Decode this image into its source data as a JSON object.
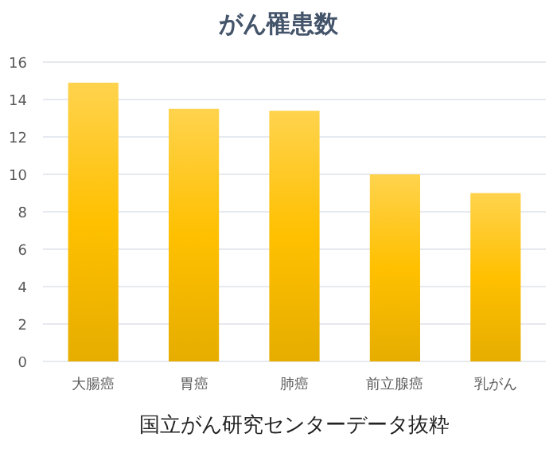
{
  "chart_data": {
    "type": "bar",
    "title": "がん罹患数",
    "categories": [
      "大腸癌",
      "胃癌",
      "肺癌",
      "前立腺癌",
      "乳がん"
    ],
    "values": [
      14.9,
      13.5,
      13.4,
      10.0,
      9.0
    ],
    "color": "#ffc000",
    "ylim": [
      0,
      16
    ],
    "yticks": [
      0,
      2,
      4,
      6,
      8,
      10,
      12,
      14,
      16
    ],
    "grid": "y",
    "annotations": [
      "国立がん研究センターデータ抜粋"
    ]
  }
}
